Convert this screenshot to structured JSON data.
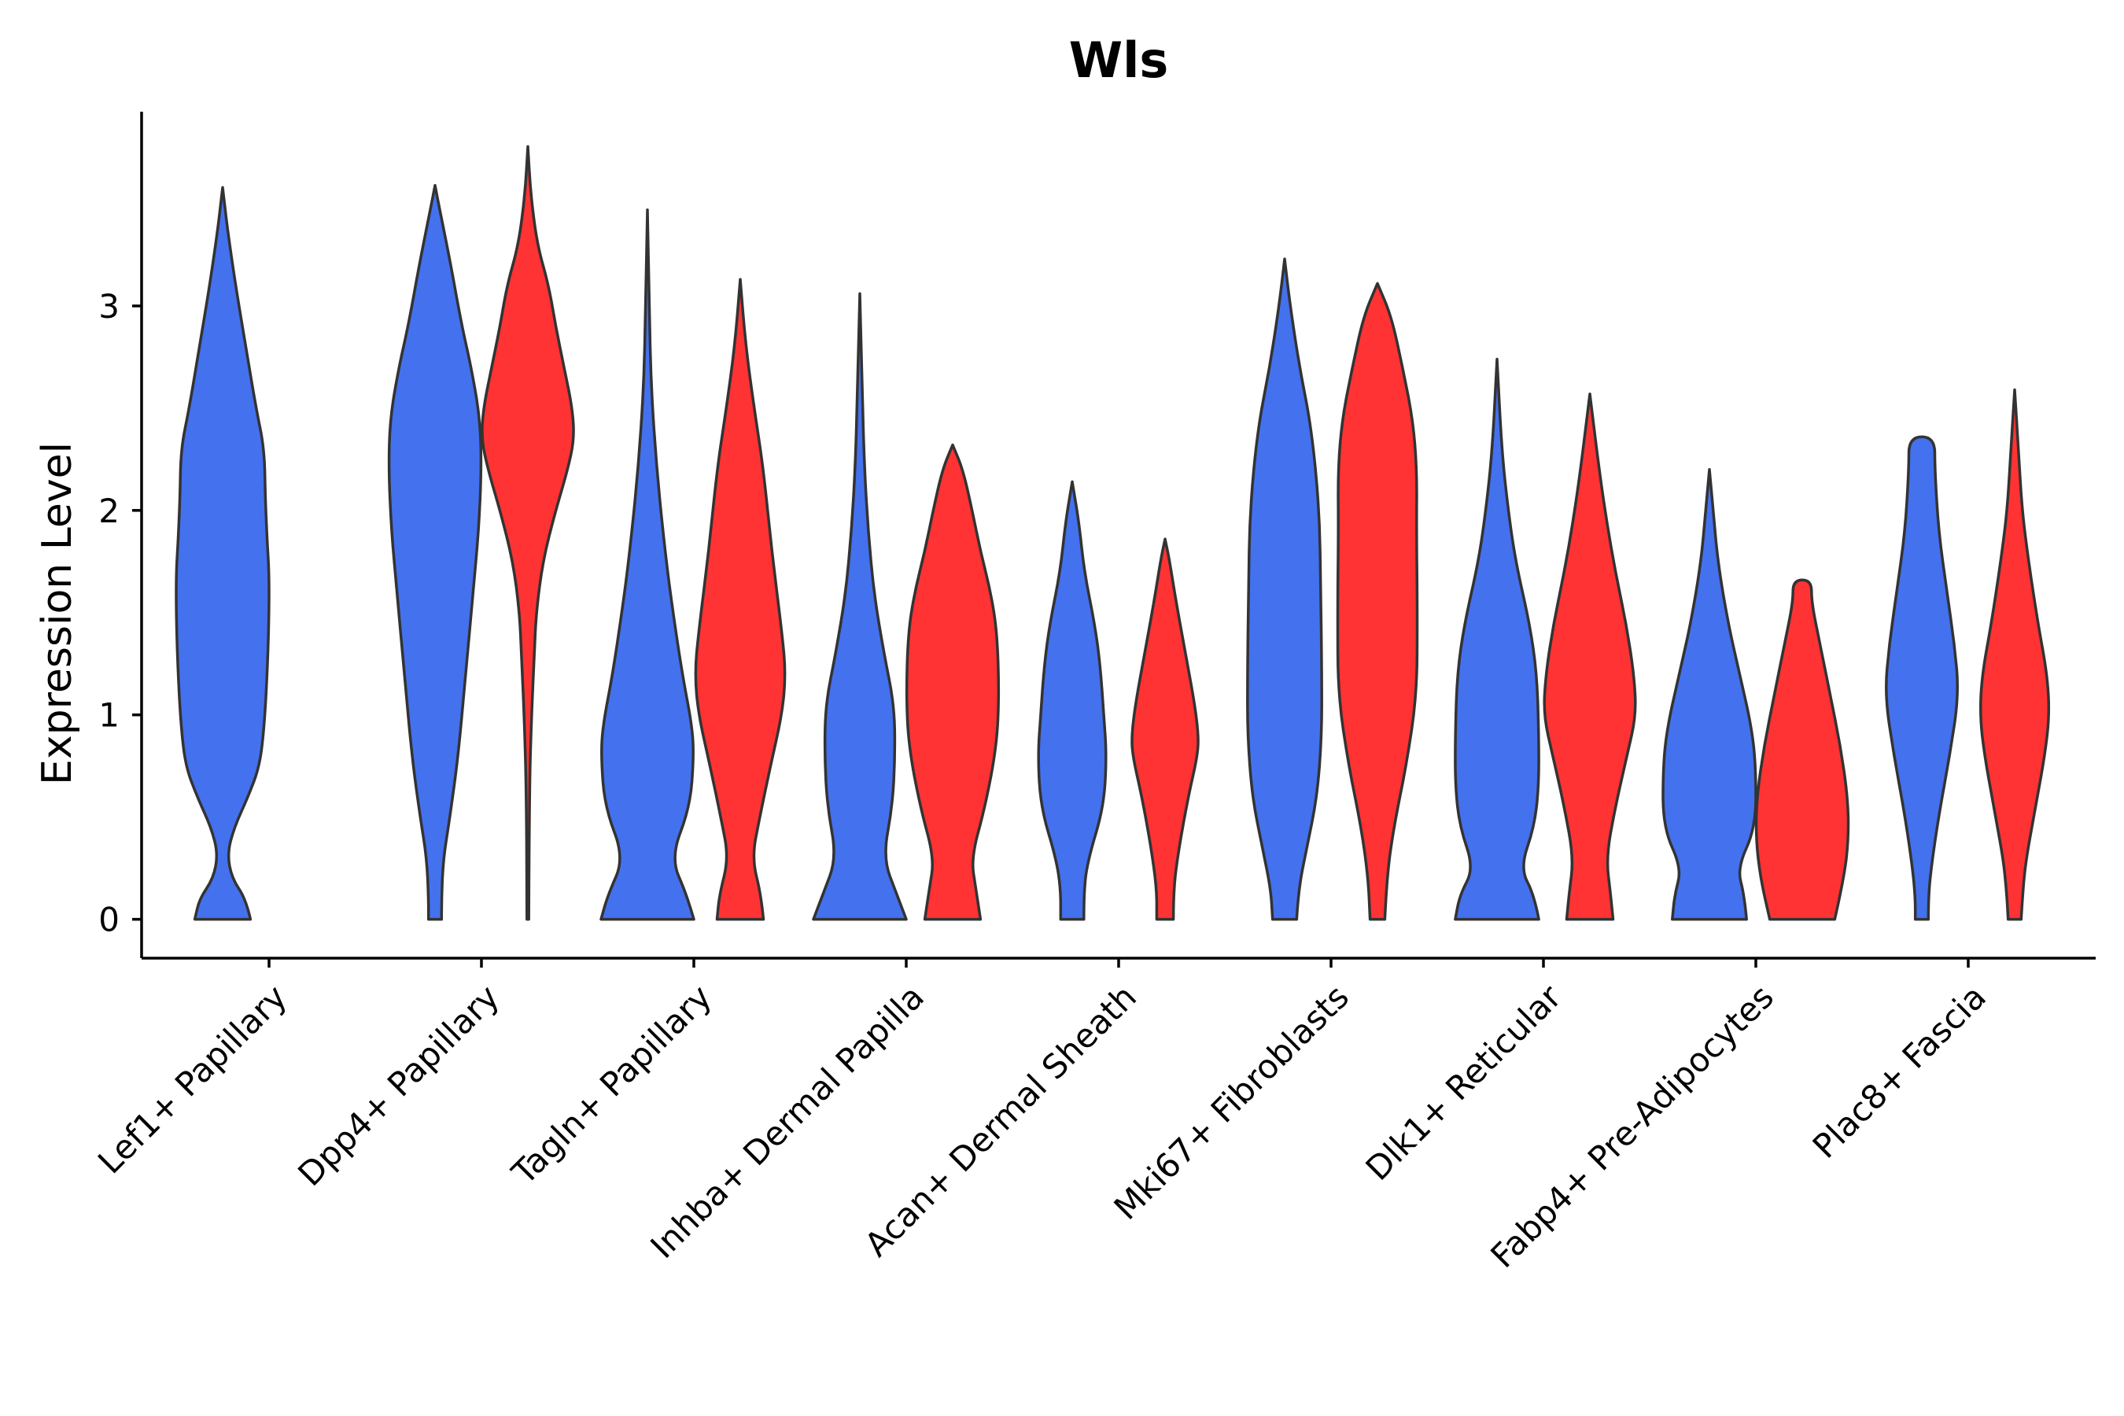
{
  "chart_data": {
    "type": "violin",
    "title": "Wls",
    "xlabel": "",
    "ylabel": "Expression Level",
    "ylim": [
      -0.19,
      3.95
    ],
    "yticks": [
      0,
      1,
      2,
      3
    ],
    "grid": false,
    "legend": "none",
    "colors": {
      "group_a": "#4471EE",
      "group_b": "#FF3333",
      "outline": "#333333"
    },
    "categories": [
      "Lef1+ Papillary",
      "Dpp4+ Papillary",
      "Tagln+ Papillary",
      "Inhba+ Dermal Papilla",
      "Acan+ Dermal Sheath",
      "Mki67+ Fibroblasts",
      "Dlk1+ Reticular",
      "Fabp4+ Pre-Adipocytes",
      "Plac8+ Fascia"
    ],
    "violins": [
      {
        "category": "Lef1+ Papillary",
        "group": "a",
        "max": 3.58,
        "profile": [
          [
            0,
            0.6
          ],
          [
            0.1,
            0.5
          ],
          [
            0.2,
            0.2
          ],
          [
            0.32,
            0.1
          ],
          [
            0.45,
            0.25
          ],
          [
            0.6,
            0.55
          ],
          [
            0.75,
            0.8
          ],
          [
            0.95,
            0.9
          ],
          [
            1.25,
            0.97
          ],
          [
            1.5,
            1.0
          ],
          [
            1.7,
            1.0
          ],
          [
            1.85,
            0.96
          ],
          [
            2.05,
            0.92
          ],
          [
            2.3,
            0.9
          ],
          [
            2.5,
            0.72
          ],
          [
            2.8,
            0.5
          ],
          [
            3.1,
            0.28
          ],
          [
            3.35,
            0.12
          ],
          [
            3.5,
            0.04
          ],
          [
            3.58,
            0
          ]
        ]
      },
      {
        "category": "Dpp4+ Papillary",
        "group": "a",
        "max": 3.59,
        "profile": [
          [
            0,
            0.14
          ],
          [
            0.1,
            0.14
          ],
          [
            0.3,
            0.18
          ],
          [
            0.5,
            0.32
          ],
          [
            0.8,
            0.5
          ],
          [
            1.2,
            0.66
          ],
          [
            1.6,
            0.82
          ],
          [
            1.9,
            0.94
          ],
          [
            2.2,
            1.0
          ],
          [
            2.45,
            0.97
          ],
          [
            2.7,
            0.78
          ],
          [
            2.9,
            0.58
          ],
          [
            3.2,
            0.34
          ],
          [
            3.45,
            0.12
          ],
          [
            3.59,
            0
          ]
        ]
      },
      {
        "category": "Dpp4+ Papillary",
        "group": "b",
        "max": 3.78,
        "profile": [
          [
            0,
            0.02
          ],
          [
            0.6,
            0.03
          ],
          [
            1.0,
            0.08
          ],
          [
            1.3,
            0.14
          ],
          [
            1.5,
            0.18
          ],
          [
            1.75,
            0.32
          ],
          [
            2.0,
            0.6
          ],
          [
            2.2,
            0.86
          ],
          [
            2.35,
            1.0
          ],
          [
            2.5,
            0.96
          ],
          [
            2.7,
            0.78
          ],
          [
            2.9,
            0.6
          ],
          [
            3.1,
            0.45
          ],
          [
            3.3,
            0.2
          ],
          [
            3.55,
            0.06
          ],
          [
            3.78,
            0
          ]
        ]
      },
      {
        "category": "Tagln+ Papillary",
        "group": "a",
        "max": 3.47,
        "profile": [
          [
            0,
            1.0
          ],
          [
            0.12,
            0.85
          ],
          [
            0.3,
            0.5
          ],
          [
            0.55,
            0.92
          ],
          [
            0.8,
            1.0
          ],
          [
            0.95,
            0.96
          ],
          [
            1.2,
            0.75
          ],
          [
            1.5,
            0.55
          ],
          [
            1.8,
            0.38
          ],
          [
            2.2,
            0.2
          ],
          [
            2.6,
            0.08
          ],
          [
            3.0,
            0.04
          ],
          [
            3.47,
            0
          ]
        ]
      },
      {
        "category": "Tagln+ Papillary",
        "group": "b",
        "max": 3.13,
        "profile": [
          [
            0,
            0.5
          ],
          [
            0.12,
            0.45
          ],
          [
            0.3,
            0.25
          ],
          [
            0.5,
            0.42
          ],
          [
            0.75,
            0.65
          ],
          [
            1.0,
            0.9
          ],
          [
            1.2,
            0.98
          ],
          [
            1.4,
            0.9
          ],
          [
            1.8,
            0.68
          ],
          [
            2.2,
            0.5
          ],
          [
            2.5,
            0.3
          ],
          [
            2.8,
            0.12
          ],
          [
            3.13,
            0
          ]
        ]
      },
      {
        "category": "Inhba+ Dermal Papilla",
        "group": "a",
        "max": 3.06,
        "profile": [
          [
            0,
            1.0
          ],
          [
            0.12,
            0.8
          ],
          [
            0.3,
            0.5
          ],
          [
            0.55,
            0.7
          ],
          [
            0.8,
            0.76
          ],
          [
            1.05,
            0.74
          ],
          [
            1.3,
            0.52
          ],
          [
            1.6,
            0.3
          ],
          [
            1.9,
            0.18
          ],
          [
            2.2,
            0.1
          ],
          [
            2.6,
            0.05
          ],
          [
            3.06,
            0
          ]
        ]
      },
      {
        "category": "Inhba+ Dermal Papilla",
        "group": "b",
        "max": 2.32,
        "profile": [
          [
            0,
            0.6
          ],
          [
            0.15,
            0.5
          ],
          [
            0.3,
            0.4
          ],
          [
            0.55,
            0.7
          ],
          [
            0.85,
            0.95
          ],
          [
            1.1,
            1.0
          ],
          [
            1.4,
            0.96
          ],
          [
            1.6,
            0.82
          ],
          [
            1.8,
            0.6
          ],
          [
            2.0,
            0.42
          ],
          [
            2.2,
            0.22
          ],
          [
            2.32,
            0
          ]
        ]
      },
      {
        "category": "Acan+ Dermal Sheath",
        "group": "a",
        "max": 2.14,
        "profile": [
          [
            0,
            0.25
          ],
          [
            0.15,
            0.25
          ],
          [
            0.3,
            0.35
          ],
          [
            0.55,
            0.68
          ],
          [
            0.8,
            0.74
          ],
          [
            1.0,
            0.68
          ],
          [
            1.25,
            0.6
          ],
          [
            1.45,
            0.48
          ],
          [
            1.7,
            0.26
          ],
          [
            1.95,
            0.14
          ],
          [
            2.14,
            0
          ]
        ]
      },
      {
        "category": "Acan+ Dermal Sheath",
        "group": "b",
        "max": 1.86,
        "profile": [
          [
            0,
            0.18
          ],
          [
            0.15,
            0.18
          ],
          [
            0.35,
            0.3
          ],
          [
            0.6,
            0.5
          ],
          [
            0.8,
            0.7
          ],
          [
            0.9,
            0.72
          ],
          [
            1.05,
            0.64
          ],
          [
            1.3,
            0.44
          ],
          [
            1.55,
            0.24
          ],
          [
            1.75,
            0.1
          ],
          [
            1.86,
            0
          ]
        ]
      },
      {
        "category": "Mki67+ Fibroblasts",
        "group": "a",
        "max": 3.23,
        "profile": [
          [
            0,
            0.26
          ],
          [
            0.15,
            0.3
          ],
          [
            0.35,
            0.48
          ],
          [
            0.6,
            0.7
          ],
          [
            0.9,
            0.8
          ],
          [
            1.2,
            0.8
          ],
          [
            1.6,
            0.78
          ],
          [
            2.0,
            0.75
          ],
          [
            2.4,
            0.58
          ],
          [
            2.7,
            0.32
          ],
          [
            3.0,
            0.12
          ],
          [
            3.23,
            0
          ]
        ]
      },
      {
        "category": "Mki67+ Fibroblasts",
        "group": "b",
        "max": 3.11,
        "profile": [
          [
            0,
            0.16
          ],
          [
            0.2,
            0.2
          ],
          [
            0.45,
            0.35
          ],
          [
            0.75,
            0.62
          ],
          [
            1.1,
            0.85
          ],
          [
            1.5,
            0.86
          ],
          [
            1.9,
            0.84
          ],
          [
            2.2,
            0.85
          ],
          [
            2.45,
            0.76
          ],
          [
            2.7,
            0.54
          ],
          [
            2.95,
            0.3
          ],
          [
            3.11,
            0
          ]
        ]
      },
      {
        "category": "Dlk1+ Reticular",
        "group": "a",
        "max": 2.74,
        "profile": [
          [
            0,
            0.9
          ],
          [
            0.12,
            0.8
          ],
          [
            0.25,
            0.5
          ],
          [
            0.45,
            0.8
          ],
          [
            0.65,
            0.9
          ],
          [
            0.9,
            0.9
          ],
          [
            1.2,
            0.86
          ],
          [
            1.45,
            0.7
          ],
          [
            1.75,
            0.4
          ],
          [
            2.0,
            0.24
          ],
          [
            2.3,
            0.1
          ],
          [
            2.74,
            0
          ]
        ]
      },
      {
        "category": "Dlk1+ Reticular",
        "group": "b",
        "max": 2.57,
        "profile": [
          [
            0,
            0.5
          ],
          [
            0.12,
            0.45
          ],
          [
            0.3,
            0.35
          ],
          [
            0.55,
            0.55
          ],
          [
            0.8,
            0.8
          ],
          [
            1.0,
            1.0
          ],
          [
            1.2,
            0.95
          ],
          [
            1.45,
            0.78
          ],
          [
            1.7,
            0.55
          ],
          [
            1.95,
            0.36
          ],
          [
            2.2,
            0.2
          ],
          [
            2.57,
            0
          ]
        ]
      },
      {
        "category": "Fabp4+ Pre-Adipocytes",
        "group": "a",
        "max": 2.2,
        "profile": [
          [
            0,
            0.8
          ],
          [
            0.12,
            0.75
          ],
          [
            0.25,
            0.6
          ],
          [
            0.45,
            1.0
          ],
          [
            0.75,
            1.0
          ],
          [
            0.95,
            0.9
          ],
          [
            1.2,
            0.65
          ],
          [
            1.45,
            0.4
          ],
          [
            1.75,
            0.18
          ],
          [
            2.0,
            0.08
          ],
          [
            2.2,
            0
          ]
        ]
      },
      {
        "category": "Fabp4+ Pre-Adipocytes",
        "group": "b",
        "max": 1.66,
        "profile": [
          [
            0,
            0.7
          ],
          [
            0.2,
            0.9
          ],
          [
            0.4,
            1.0
          ],
          [
            0.6,
            0.98
          ],
          [
            0.85,
            0.82
          ],
          [
            1.1,
            0.6
          ],
          [
            1.35,
            0.38
          ],
          [
            1.55,
            0.2
          ],
          [
            1.66,
            0.2
          ]
        ]
      },
      {
        "category": "Plac8+ Fascia",
        "group": "a",
        "max": 2.36,
        "profile": [
          [
            0,
            0.14
          ],
          [
            0.1,
            0.14
          ],
          [
            0.25,
            0.2
          ],
          [
            0.5,
            0.36
          ],
          [
            0.8,
            0.6
          ],
          [
            1.1,
            0.8
          ],
          [
            1.35,
            0.7
          ],
          [
            1.6,
            0.54
          ],
          [
            1.9,
            0.36
          ],
          [
            2.2,
            0.28
          ],
          [
            2.36,
            0.28
          ]
        ]
      },
      {
        "category": "Plac8+ Fascia",
        "group": "b",
        "max": 2.59,
        "profile": [
          [
            0,
            0.14
          ],
          [
            0.15,
            0.18
          ],
          [
            0.3,
            0.25
          ],
          [
            0.55,
            0.45
          ],
          [
            0.8,
            0.65
          ],
          [
            1.0,
            0.75
          ],
          [
            1.2,
            0.7
          ],
          [
            1.45,
            0.5
          ],
          [
            1.75,
            0.3
          ],
          [
            2.0,
            0.16
          ],
          [
            2.3,
            0.08
          ],
          [
            2.59,
            0
          ]
        ]
      }
    ]
  }
}
